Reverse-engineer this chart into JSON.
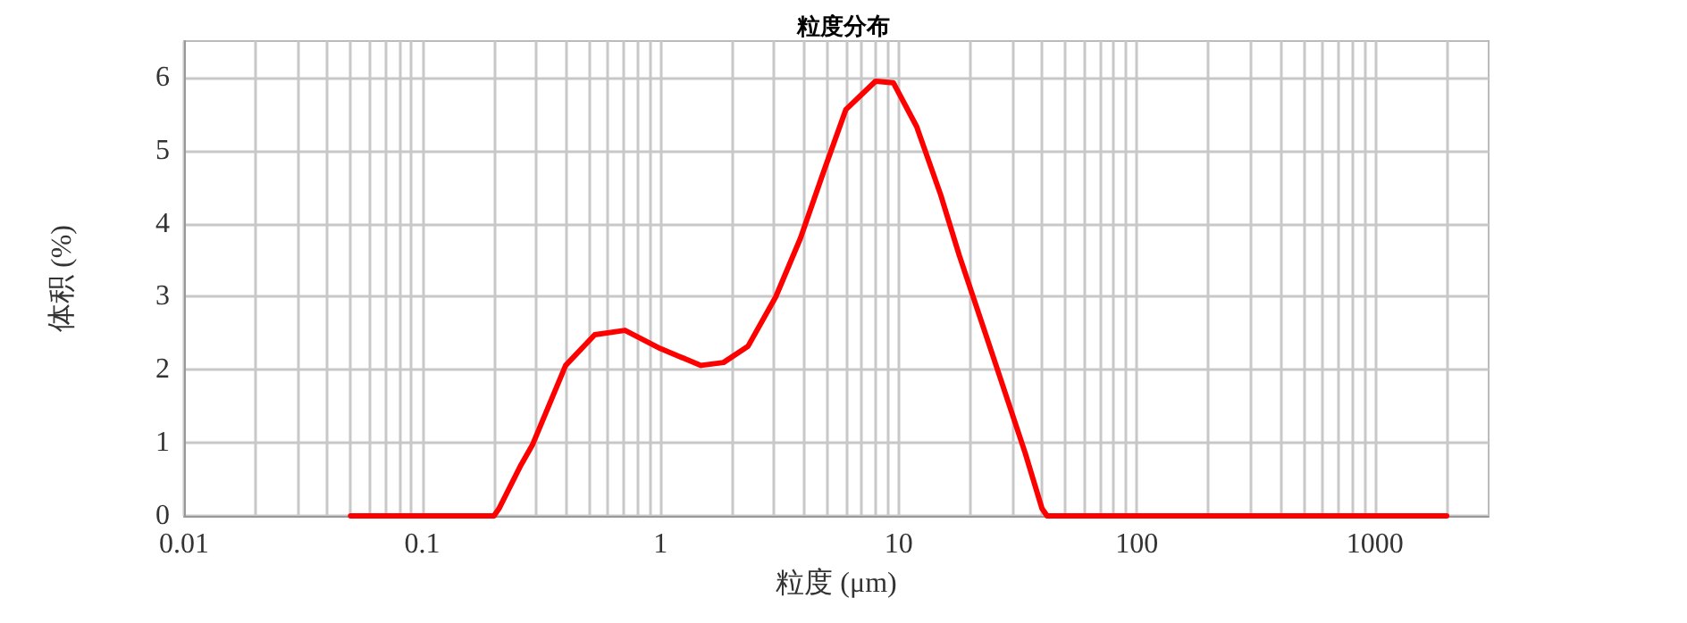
{
  "chart_data": {
    "type": "line",
    "title": "粒度分布",
    "xlabel": "粒度 (μm)",
    "ylabel": "体积 (%)",
    "x": [
      0.05,
      0.1,
      0.2,
      0.21,
      0.26,
      0.29,
      0.4,
      0.53,
      0.71,
      1.0,
      1.48,
      1.84,
      2.33,
      3.05,
      3.87,
      4.83,
      6.0,
      8.0,
      9.5,
      11.9,
      15,
      18,
      25,
      34,
      40,
      42,
      100,
      1000,
      2000
    ],
    "series": [
      {
        "color": "#ff0000",
        "values": [
          0,
          0,
          0,
          0.1,
          0.7,
          0.97,
          2.06,
          2.48,
          2.54,
          2.29,
          2.06,
          2.1,
          2.32,
          3.0,
          3.8,
          4.7,
          5.56,
          5.95,
          5.93,
          5.33,
          4.4,
          3.56,
          2.17,
          0.86,
          0.1,
          0,
          0,
          0,
          0
        ]
      }
    ],
    "log": "x",
    "xlim": [
      0.01,
      3000
    ],
    "xticks": [
      0.01,
      {
        "value": 0.02,
        "label": null
      },
      {
        "value": 0.03,
        "label": null
      },
      {
        "value": 0.04,
        "label": null
      },
      {
        "value": 0.05,
        "label": null
      },
      {
        "value": 0.06,
        "label": null
      },
      {
        "value": 0.07,
        "label": null
      },
      {
        "value": 0.08,
        "label": null
      },
      {
        "value": 0.09,
        "label": null
      },
      0.1,
      {
        "value": 0.2,
        "label": null
      },
      {
        "value": 0.3,
        "label": null
      },
      {
        "value": 0.4,
        "label": null
      },
      {
        "value": 0.5,
        "label": null
      },
      {
        "value": 0.6,
        "label": null
      },
      {
        "value": 0.7,
        "label": null
      },
      {
        "value": 0.8,
        "label": null
      },
      {
        "value": 0.9,
        "label": null
      },
      1,
      {
        "value": 2,
        "label": null
      },
      {
        "value": 3,
        "label": null
      },
      {
        "value": 4,
        "label": null
      },
      {
        "value": 5,
        "label": null
      },
      {
        "value": 6,
        "label": null
      },
      {
        "value": 7,
        "label": null
      },
      {
        "value": 8,
        "label": null
      },
      {
        "value": 9,
        "label": null
      },
      10,
      {
        "value": 20,
        "label": null
      },
      {
        "value": 30,
        "label": null
      },
      {
        "value": 40,
        "label": null
      },
      {
        "value": 50,
        "label": null
      },
      {
        "value": 60,
        "label": null
      },
      {
        "value": 70,
        "label": null
      },
      {
        "value": 80,
        "label": null
      },
      {
        "value": 90,
        "label": null
      },
      100,
      {
        "value": 200,
        "label": null
      },
      {
        "value": 300,
        "label": null
      },
      {
        "value": 400,
        "label": null
      },
      {
        "value": 500,
        "label": null
      },
      {
        "value": 600,
        "label": null
      },
      {
        "value": 700,
        "label": null
      },
      {
        "value": 800,
        "label": null
      },
      {
        "value": 900,
        "label": null
      },
      1000,
      {
        "value": 2000,
        "label": null
      }
    ],
    "ylim": [
      0,
      6.5
    ],
    "yticks": [
      0,
      1,
      2,
      3,
      4,
      5,
      6
    ],
    "grid": true,
    "marker": "none",
    "line_style": "solid"
  }
}
